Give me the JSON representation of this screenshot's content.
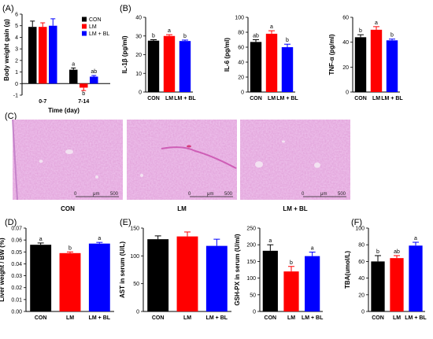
{
  "colors": {
    "CON": "#000000",
    "LM": "#ff0000",
    "LM + BL": "#0000ff"
  },
  "panels": {
    "A": {
      "letter": "(A)"
    },
    "B": {
      "letter": "(B)"
    },
    "C": {
      "letter": "(C)"
    },
    "D": {
      "letter": "(D)"
    },
    "E": {
      "letter": "(E)"
    },
    "F": {
      "letter": "(F)"
    }
  },
  "histology": {
    "captions": [
      "CON",
      "LM",
      "LM + BL"
    ],
    "scale_labels": [
      "0",
      "μm",
      "500"
    ]
  },
  "chart_data": [
    {
      "id": "A",
      "type": "bar",
      "categories": [
        "0-7",
        "7-14"
      ],
      "series": [
        {
          "name": "CON",
          "values": [
            4.9,
            1.2
          ],
          "errors": [
            0.5,
            0.15
          ]
        },
        {
          "name": "LM",
          "values": [
            4.9,
            -0.35
          ],
          "errors": [
            0.35,
            0.25
          ]
        },
        {
          "name": "LM + BL",
          "values": [
            5.0,
            0.6
          ],
          "errors": [
            0.6,
            0.1
          ]
        }
      ],
      "labels": [
        [
          "",
          ""
        ],
        [
          "a",
          "b",
          "ab"
        ]
      ],
      "ylabel": "Body weight gain (g)",
      "xlabel": "Time (day)",
      "ylim": [
        -1,
        6
      ],
      "yticks": [
        -1,
        0,
        1,
        2,
        3,
        4,
        5,
        6
      ],
      "legend": [
        "CON",
        "LM",
        "LM + BL"
      ],
      "legend_position": "top-right"
    },
    {
      "id": "B1",
      "type": "bar",
      "categories": [
        "CON",
        "LM",
        "LM + BL"
      ],
      "values": [
        27.5,
        30.0,
        27.3
      ],
      "errors": [
        0.5,
        0.7,
        0.5
      ],
      "labels": [
        "b",
        "a",
        "b"
      ],
      "ylabel": "IL-1β (pg/ml)",
      "ylim": [
        0,
        40
      ],
      "yticks": [
        0,
        10,
        20,
        30,
        40
      ]
    },
    {
      "id": "B2",
      "type": "bar",
      "categories": [
        "CON",
        "LM",
        "LM + BL"
      ],
      "values": [
        67,
        78,
        60
      ],
      "errors": [
        3,
        4,
        4
      ],
      "labels": [
        "ab",
        "a",
        "b"
      ],
      "ylabel": "IL-6 (pg/ml)",
      "ylim": [
        0,
        100
      ],
      "yticks": [
        0,
        20,
        40,
        60,
        80,
        100
      ]
    },
    {
      "id": "B3",
      "type": "bar",
      "categories": [
        "CON",
        "LM",
        "LM + BL"
      ],
      "values": [
        44,
        50,
        41.5
      ],
      "errors": [
        2,
        2.5,
        1
      ],
      "labels": [
        "b",
        "a",
        "b"
      ],
      "ylabel": "TNF-α (pg/ml)",
      "ylim": [
        0,
        60
      ],
      "yticks": [
        0,
        20,
        40,
        60
      ]
    },
    {
      "id": "D",
      "type": "bar",
      "categories": [
        "CON",
        "LM",
        "LM + BL"
      ],
      "values": [
        0.056,
        0.049,
        0.057
      ],
      "errors": [
        0.0015,
        0.001,
        0.001
      ],
      "labels": [
        "a",
        "b",
        "a"
      ],
      "ylabel": "Liver weight / BW (%)",
      "ylim": [
        0,
        0.07
      ],
      "yticks": [
        0,
        0.01,
        0.02,
        0.03,
        0.04,
        0.05,
        0.06,
        0.07
      ],
      "ytick_labels": [
        "0.00",
        "0.01",
        "0.02",
        "0.03",
        "0.04",
        "0.05",
        "0.06",
        "0.07"
      ]
    },
    {
      "id": "E1",
      "type": "bar",
      "categories": [
        "CON",
        "LM",
        "LM + BL"
      ],
      "values": [
        130,
        135,
        118
      ],
      "errors": [
        6,
        8,
        12
      ],
      "labels": [
        "",
        "",
        ""
      ],
      "ylabel": "AST in serum (U/L)",
      "ylim": [
        0,
        150
      ],
      "yticks": [
        0,
        50,
        100,
        150
      ]
    },
    {
      "id": "E2",
      "type": "bar",
      "categories": [
        "CON",
        "LM",
        "LM + BL"
      ],
      "values": [
        182,
        120,
        166
      ],
      "errors": [
        18,
        15,
        12
      ],
      "labels": [
        "a",
        "b",
        "a"
      ],
      "ylabel": "GSH-PX in serum (U/ml)",
      "ylim": [
        0,
        250
      ],
      "yticks": [
        0,
        50,
        100,
        150,
        200,
        250
      ]
    },
    {
      "id": "F",
      "type": "bar",
      "categories": [
        "CON",
        "LM",
        "LM + BL"
      ],
      "values": [
        60,
        64,
        79
      ],
      "errors": [
        7,
        3,
        4
      ],
      "labels": [
        "b",
        "ab",
        "a"
      ],
      "ylabel": "TBA(umol/L)",
      "ylim": [
        0,
        100
      ],
      "yticks": [
        0,
        20,
        40,
        60,
        80,
        100
      ]
    }
  ]
}
